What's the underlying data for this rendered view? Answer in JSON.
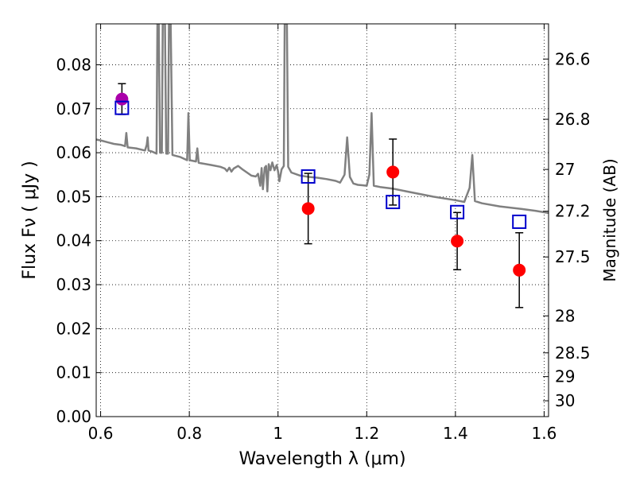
{
  "chart_data": {
    "type": "scatter",
    "title": "",
    "xlabel": "Wavelength  λ (μm)",
    "ylabel": "Flux  Fν  ( μJy )",
    "y2label": "Magnitude (AB)",
    "xlim": [
      0.59,
      1.61
    ],
    "ylim": [
      0.0,
      0.0893
    ],
    "grid": true,
    "x_ticks": [
      {
        "value": 0.6,
        "label": "0.6"
      },
      {
        "value": 0.8,
        "label": "0.8"
      },
      {
        "value": 1.0,
        "label": "1"
      },
      {
        "value": 1.2,
        "label": "1.2"
      },
      {
        "value": 1.4,
        "label": "1.4"
      },
      {
        "value": 1.6,
        "label": "1.6"
      }
    ],
    "y_ticks": [
      {
        "value": 0.0,
        "label": "0.00"
      },
      {
        "value": 0.01,
        "label": "0.01"
      },
      {
        "value": 0.02,
        "label": "0.02"
      },
      {
        "value": 0.03,
        "label": "0.03"
      },
      {
        "value": 0.04,
        "label": "0.04"
      },
      {
        "value": 0.05,
        "label": "0.05"
      },
      {
        "value": 0.06,
        "label": "0.06"
      },
      {
        "value": 0.07,
        "label": "0.07"
      },
      {
        "value": 0.08,
        "label": "0.08"
      }
    ],
    "y2_ticks": [
      {
        "flux": 0.0813,
        "label": "26.6"
      },
      {
        "flux": 0.0676,
        "label": "26.8"
      },
      {
        "flux": 0.0562,
        "label": "27"
      },
      {
        "flux": 0.0467,
        "label": "27.2"
      },
      {
        "flux": 0.0363,
        "label": "27.5"
      },
      {
        "flux": 0.0229,
        "label": "28"
      },
      {
        "flux": 0.0145,
        "label": "28.5"
      },
      {
        "flux": 0.0091,
        "label": "29"
      },
      {
        "flux": 0.0036,
        "label": "30"
      }
    ],
    "spectrum": {
      "color": "#808080",
      "points": [
        [
          0.59,
          0.063
        ],
        [
          0.6,
          0.0628
        ],
        [
          0.615,
          0.0624
        ],
        [
          0.63,
          0.062
        ],
        [
          0.645,
          0.0618
        ],
        [
          0.655,
          0.0615
        ],
        [
          0.658,
          0.0645
        ],
        [
          0.661,
          0.0612
        ],
        [
          0.68,
          0.061
        ],
        [
          0.7,
          0.0605
        ],
        [
          0.704,
          0.0618
        ],
        [
          0.706,
          0.0635
        ],
        [
          0.708,
          0.0605
        ],
        [
          0.715,
          0.0603
        ],
        [
          0.726,
          0.0598
        ],
        [
          0.728,
          0.0893
        ],
        [
          0.731,
          0.0893
        ],
        [
          0.734,
          0.06
        ],
        [
          0.738,
          0.06
        ],
        [
          0.74,
          0.0893
        ],
        [
          0.745,
          0.0893
        ],
        [
          0.748,
          0.0598
        ],
        [
          0.752,
          0.0598
        ],
        [
          0.754,
          0.0893
        ],
        [
          0.758,
          0.0893
        ],
        [
          0.762,
          0.0595
        ],
        [
          0.78,
          0.059
        ],
        [
          0.795,
          0.0583
        ],
        [
          0.798,
          0.069
        ],
        [
          0.801,
          0.0583
        ],
        [
          0.815,
          0.058
        ],
        [
          0.818,
          0.061
        ],
        [
          0.821,
          0.0577
        ],
        [
          0.85,
          0.0572
        ],
        [
          0.87,
          0.0568
        ],
        [
          0.88,
          0.0564
        ],
        [
          0.885,
          0.0558
        ],
        [
          0.89,
          0.0566
        ],
        [
          0.895,
          0.0557
        ],
        [
          0.9,
          0.0564
        ],
        [
          0.91,
          0.057
        ],
        [
          0.92,
          0.0562
        ],
        [
          0.93,
          0.0555
        ],
        [
          0.94,
          0.0548
        ],
        [
          0.95,
          0.0546
        ],
        [
          0.955,
          0.0552
        ],
        [
          0.96,
          0.0525
        ],
        [
          0.963,
          0.0565
        ],
        [
          0.966,
          0.0517
        ],
        [
          0.97,
          0.0566
        ],
        [
          0.973,
          0.057
        ],
        [
          0.976,
          0.0512
        ],
        [
          0.979,
          0.0574
        ],
        [
          0.983,
          0.056
        ],
        [
          0.987,
          0.0578
        ],
        [
          0.992,
          0.056
        ],
        [
          0.997,
          0.0572
        ],
        [
          1.0,
          0.0558
        ],
        [
          1.003,
          0.0535
        ],
        [
          1.008,
          0.0562
        ],
        [
          1.013,
          0.057
        ],
        [
          1.015,
          0.0893
        ],
        [
          1.02,
          0.0893
        ],
        [
          1.023,
          0.0568
        ],
        [
          1.03,
          0.0555
        ],
        [
          1.05,
          0.0548
        ],
        [
          1.07,
          0.0545
        ],
        [
          1.09,
          0.0543
        ],
        [
          1.11,
          0.054
        ],
        [
          1.13,
          0.0536
        ],
        [
          1.14,
          0.0532
        ],
        [
          1.15,
          0.055
        ],
        [
          1.156,
          0.0635
        ],
        [
          1.162,
          0.0545
        ],
        [
          1.17,
          0.053
        ],
        [
          1.18,
          0.0527
        ],
        [
          1.19,
          0.0526
        ],
        [
          1.2,
          0.0525
        ],
        [
          1.206,
          0.055
        ],
        [
          1.211,
          0.069
        ],
        [
          1.216,
          0.0525
        ],
        [
          1.23,
          0.0522
        ],
        [
          1.26,
          0.0518
        ],
        [
          1.3,
          0.051
        ],
        [
          1.35,
          0.05
        ],
        [
          1.4,
          0.0492
        ],
        [
          1.42,
          0.0488
        ],
        [
          1.432,
          0.052
        ],
        [
          1.438,
          0.0595
        ],
        [
          1.444,
          0.049
        ],
        [
          1.46,
          0.0485
        ],
        [
          1.5,
          0.0478
        ],
        [
          1.55,
          0.0472
        ],
        [
          1.58,
          0.0468
        ],
        [
          1.61,
          0.0463
        ]
      ]
    },
    "series": [
      {
        "marker": "circle",
        "color": "#ff0000",
        "points": [
          {
            "x": 1.068,
            "y": 0.0473,
            "err": 0.008
          },
          {
            "x": 1.259,
            "y": 0.0556,
            "err": 0.0075
          },
          {
            "x": 1.404,
            "y": 0.0399,
            "err": 0.0065
          },
          {
            "x": 1.544,
            "y": 0.0333,
            "err": 0.0085
          }
        ]
      },
      {
        "marker": "circle",
        "color": "#aa00aa",
        "points": [
          {
            "x": 0.648,
            "y": 0.0722,
            "err": 0.0035
          }
        ]
      },
      {
        "marker": "open-square",
        "color": "#0000cc",
        "points": [
          {
            "x": 0.648,
            "y": 0.0702
          },
          {
            "x": 1.068,
            "y": 0.0546
          },
          {
            "x": 1.259,
            "y": 0.0488
          },
          {
            "x": 1.404,
            "y": 0.0465
          },
          {
            "x": 1.544,
            "y": 0.0443
          }
        ]
      }
    ]
  }
}
